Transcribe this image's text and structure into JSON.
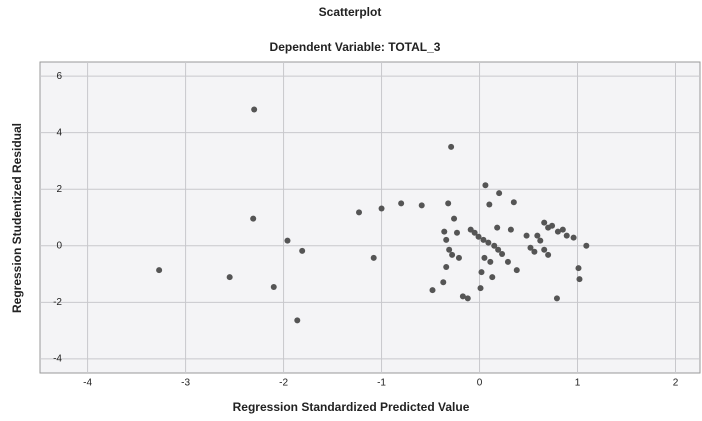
{
  "chart_data": {
    "type": "scatter",
    "title": "Scatterplot",
    "subtitle": "Dependent Variable: TOTAL_3",
    "x_label": "Regression Standardized Predicted Value",
    "y_label": "Regression Studentized Residual",
    "xlim": [
      -4.2,
      2.25
    ],
    "ylim": [
      -4.5,
      6.5
    ],
    "xticks": [
      -4,
      -3,
      -2,
      -1,
      0,
      1,
      2
    ],
    "yticks": [
      -4,
      -2,
      0,
      2,
      4,
      6
    ],
    "grid": true,
    "series": [
      {
        "color": "#555555",
        "x": [
          -3.27,
          -2.55,
          -2.3,
          -2.31,
          -1.96,
          -1.81,
          -2.1,
          -1.86,
          -1.23,
          -1.0,
          -1.08,
          -0.8,
          -0.59,
          -0.29,
          -0.32,
          -0.26,
          -0.23,
          -0.36,
          -0.34,
          -0.31,
          -0.28,
          -0.21,
          -0.34,
          -0.37,
          -0.48,
          -0.17,
          -0.12,
          -0.09,
          -0.05,
          -0.01,
          0.04,
          0.09,
          0.15,
          0.19,
          0.23,
          0.06,
          0.1,
          0.2,
          0.35,
          0.18,
          0.32,
          0.05,
          0.11,
          0.02,
          0.01,
          0.13,
          0.29,
          0.38,
          0.48,
          0.52,
          0.56,
          0.59,
          0.62,
          0.66,
          0.7,
          0.74,
          0.8,
          0.85,
          0.89,
          0.7,
          0.66,
          0.79,
          0.96,
          1.01,
          1.02,
          1.09
        ],
        "values": [
          -0.86,
          -1.11,
          4.82,
          0.96,
          0.18,
          -0.18,
          -1.46,
          -2.64,
          1.18,
          1.32,
          -0.43,
          1.5,
          1.43,
          3.5,
          1.5,
          0.96,
          0.46,
          0.5,
          0.21,
          -0.14,
          -0.32,
          -0.43,
          -0.75,
          -1.29,
          -1.57,
          -1.79,
          -1.86,
          0.57,
          0.46,
          0.32,
          0.21,
          0.11,
          0,
          -0.14,
          -0.29,
          2.14,
          1.46,
          1.86,
          1.54,
          0.64,
          0.57,
          -0.43,
          -0.57,
          -0.93,
          -1.5,
          -1.11,
          -0.57,
          -0.86,
          0.36,
          -0.07,
          -0.21,
          0.36,
          0.18,
          0.82,
          0.64,
          0.71,
          0.5,
          0.57,
          0.36,
          -0.32,
          -0.14,
          -1.86,
          0.29,
          -0.79,
          -1.18,
          0
        ]
      }
    ]
  }
}
